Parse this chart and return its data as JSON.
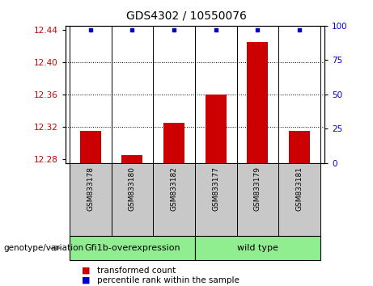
{
  "title": "GDS4302 / 10550076",
  "samples": [
    "GSM833178",
    "GSM833180",
    "GSM833182",
    "GSM833177",
    "GSM833179",
    "GSM833181"
  ],
  "transformed_counts": [
    12.315,
    12.285,
    12.325,
    12.36,
    12.425,
    12.315
  ],
  "percentile_ranks": [
    97,
    97,
    97,
    97,
    97,
    97
  ],
  "ylim_left": [
    12.275,
    12.445
  ],
  "ylim_right": [
    0,
    100
  ],
  "yticks_left": [
    12.28,
    12.32,
    12.36,
    12.4,
    12.44
  ],
  "yticks_right": [
    0,
    25,
    50,
    75,
    100
  ],
  "grid_lines": [
    12.32,
    12.36,
    12.4
  ],
  "bar_color": "#CC0000",
  "dot_color": "#0000CC",
  "bar_width": 0.5,
  "label_transformed": "transformed count",
  "label_percentile": "percentile rank within the sample",
  "genotype_label": "genotype/variation",
  "group1_label": "Gfi1b-overexpression",
  "group2_label": "wild type",
  "group1_color": "#90EE90",
  "group2_color": "#90EE90",
  "sample_box_color": "#C8C8C8",
  "left_axis_color": "#CC0000",
  "right_axis_color": "#0000CC",
  "title_fontsize": 10,
  "tick_fontsize": 7.5,
  "sample_fontsize": 6.5,
  "group_fontsize": 8,
  "legend_fontsize": 7.5,
  "genotype_fontsize": 7.5
}
